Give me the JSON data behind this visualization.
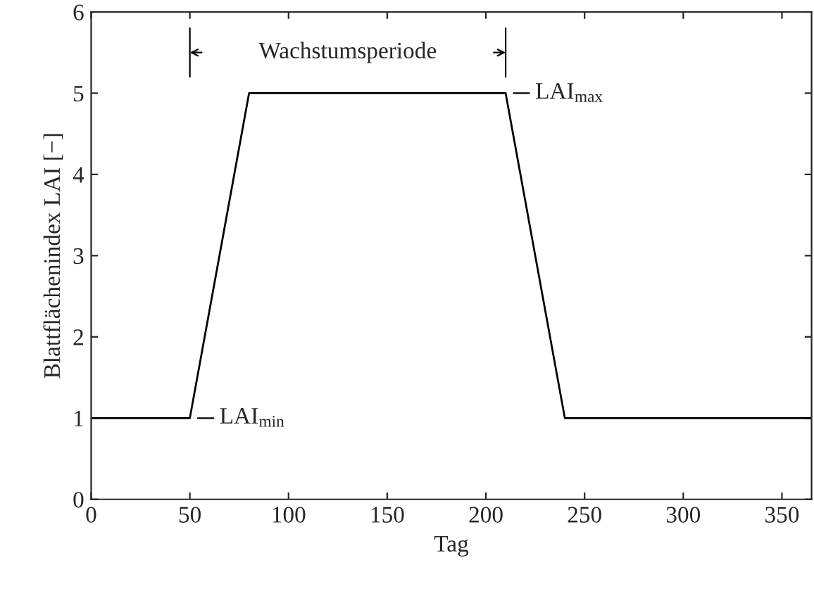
{
  "chart_data": {
    "type": "line",
    "xlabel": "Tag",
    "ylabel": "Blattflächenindex LAI [−]",
    "x": [
      0,
      50,
      80,
      210,
      240,
      365
    ],
    "series": [
      {
        "color": "#000000",
        "values": [
          1,
          1,
          5,
          5,
          1,
          1
        ]
      }
    ],
    "xlim": [
      0,
      365
    ],
    "xticks": [
      0,
      50,
      100,
      150,
      200,
      250,
      300,
      350
    ],
    "ylim": [
      0,
      6
    ],
    "yticks": [
      0,
      1,
      2,
      3,
      4,
      5,
      6
    ],
    "grid": false,
    "legend": false,
    "marker": "none",
    "line_style": "solid",
    "annotations": [
      "Wachstumsperiode",
      {
        "text": "LAI$_{max}$",
        "x": 210,
        "y": 5
      },
      {
        "text": "LAI$_{min}$",
        "x": 50,
        "y": 1
      }
    ]
  }
}
